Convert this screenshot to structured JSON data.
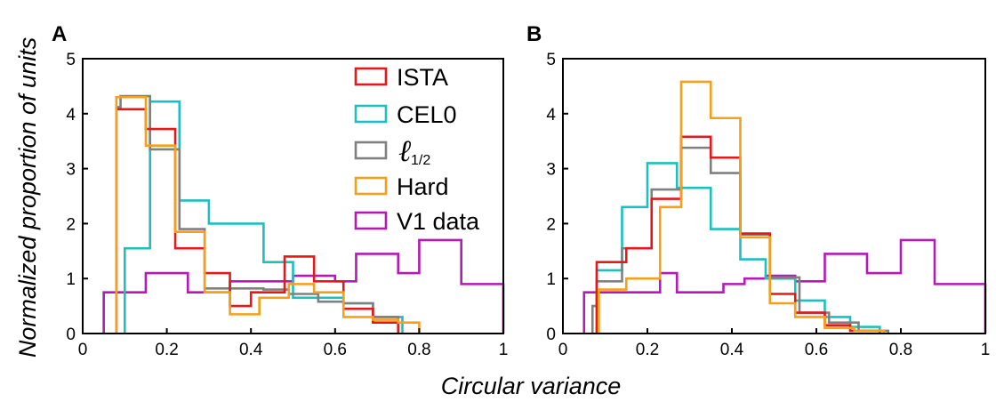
{
  "figure": {
    "ylabel": "Normalized proportion of units",
    "xlabel": "Circular variance"
  },
  "colors": {
    "ISTA": "#e31a1c",
    "CEL0": "#1fbfbf",
    "l12": "#808080",
    "Hard": "#f5a01a",
    "V1": "#b41ab4"
  },
  "legend": [
    {
      "key": "ISTA",
      "label": "ISTA"
    },
    {
      "key": "CEL0",
      "label": "CEL0"
    },
    {
      "key": "l12",
      "label": "ℓ",
      "sub": "1/2"
    },
    {
      "key": "Hard",
      "label": "Hard"
    },
    {
      "key": "V1",
      "label": "V1 data"
    }
  ],
  "chart_data": [
    {
      "type": "histogram-step",
      "panel": "A",
      "xlim": [
        0,
        1
      ],
      "ylim": [
        0,
        5
      ],
      "xticks": [
        "0",
        "0.2",
        "0.4",
        "0.6",
        "0.8",
        "1"
      ],
      "yticks": [
        "0",
        "1",
        "2",
        "3",
        "4",
        "5"
      ],
      "series": [
        {
          "key": "V1",
          "edges": [
            0.05,
            0.1,
            0.15,
            0.2,
            0.25,
            0.3,
            0.35,
            0.4,
            0.45,
            0.5,
            0.55,
            0.6,
            0.65,
            0.7,
            0.75,
            0.8,
            0.85,
            0.9,
            0.95,
            1.0
          ],
          "values": [
            0.75,
            0.75,
            1.1,
            1.1,
            0.75,
            0.75,
            0.95,
            0.95,
            0.95,
            1.05,
            1.05,
            0.95,
            1.45,
            1.45,
            1.1,
            1.7,
            1.7,
            0.9,
            0.9
          ]
        },
        {
          "key": "CEL0",
          "edges": [
            0.1,
            0.115,
            0.16,
            0.23,
            0.3,
            0.43,
            0.5,
            0.54,
            0.62,
            0.69,
            0.76
          ],
          "values": [
            1.55,
            1.55,
            4.22,
            2.42,
            2.0,
            1.3,
            0.65,
            0.65,
            0.55,
            0.3
          ]
        },
        {
          "key": "l12",
          "edges": [
            0.08,
            0.09,
            0.16,
            0.23,
            0.29,
            0.36,
            0.43,
            0.49,
            0.56,
            0.62,
            0.69,
            0.75
          ],
          "values": [
            4.12,
            4.32,
            3.35,
            1.9,
            0.82,
            0.82,
            0.8,
            0.72,
            0.58,
            0.55,
            0.3
          ]
        },
        {
          "key": "ISTA",
          "edges": [
            0.08,
            0.15,
            0.22,
            0.29,
            0.35,
            0.4,
            0.48,
            0.55,
            0.62,
            0.69,
            0.75
          ],
          "values": [
            4.08,
            3.72,
            1.55,
            1.1,
            0.5,
            0.75,
            1.4,
            0.95,
            0.45,
            0.2
          ]
        },
        {
          "key": "Hard",
          "edges": [
            0.08,
            0.15,
            0.22,
            0.29,
            0.35,
            0.42,
            0.49,
            0.55,
            0.62,
            0.69,
            0.75,
            0.8
          ],
          "values": [
            4.3,
            3.42,
            1.85,
            0.75,
            0.35,
            0.65,
            0.9,
            0.75,
            0.3,
            0.25,
            0.2
          ]
        }
      ]
    },
    {
      "type": "histogram-step",
      "panel": "B",
      "xlim": [
        0,
        1
      ],
      "ylim": [
        0,
        5
      ],
      "xticks": [
        "0",
        "0.2",
        "0.4",
        "0.6",
        "0.8",
        "1"
      ],
      "yticks": [
        "0",
        "1",
        "2",
        "3",
        "4",
        "5"
      ],
      "series": [
        {
          "key": "V1",
          "edges": [
            0.05,
            0.12,
            0.23,
            0.27,
            0.32,
            0.38,
            0.43,
            0.48,
            0.55,
            0.62,
            0.68,
            0.72,
            0.8,
            0.88,
            0.95,
            1.0
          ],
          "values": [
            0.75,
            0.75,
            1.1,
            0.75,
            0.75,
            0.9,
            1.0,
            1.05,
            0.95,
            1.45,
            1.45,
            1.1,
            1.7,
            0.9,
            0.9
          ]
        },
        {
          "key": "CEL0",
          "edges": [
            0.08,
            0.14,
            0.2,
            0.27,
            0.35,
            0.42,
            0.48,
            0.55,
            0.62,
            0.68,
            0.75
          ],
          "values": [
            1.15,
            2.3,
            3.1,
            2.65,
            1.9,
            1.35,
            1.0,
            0.6,
            0.3,
            0.12
          ]
        },
        {
          "key": "l12",
          "edges": [
            0.07,
            0.08,
            0.14,
            0.21,
            0.28,
            0.35,
            0.42,
            0.49,
            0.56,
            0.63,
            0.7,
            0.77
          ],
          "values": [
            0.5,
            0.95,
            1.55,
            2.62,
            3.38,
            2.92,
            1.8,
            1.02,
            0.38,
            0.2,
            0.05
          ]
        },
        {
          "key": "ISTA",
          "edges": [
            0.08,
            0.15,
            0.21,
            0.28,
            0.35,
            0.42,
            0.49,
            0.55,
            0.62,
            0.68,
            0.75
          ],
          "values": [
            1.3,
            1.55,
            2.45,
            3.58,
            3.2,
            1.82,
            0.72,
            0.38,
            0.15,
            0.05
          ]
        },
        {
          "key": "Hard",
          "edges": [
            0.085,
            0.15,
            0.23,
            0.28,
            0.35,
            0.42,
            0.49,
            0.55,
            0.62,
            0.69,
            0.76
          ],
          "values": [
            0.8,
            1.0,
            2.3,
            4.58,
            3.92,
            1.75,
            0.55,
            0.3,
            0.1,
            0.05
          ]
        }
      ]
    }
  ]
}
